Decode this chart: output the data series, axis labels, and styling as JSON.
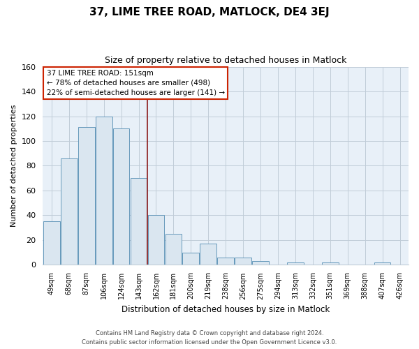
{
  "title": "37, LIME TREE ROAD, MATLOCK, DE4 3EJ",
  "subtitle": "Size of property relative to detached houses in Matlock",
  "xlabel": "Distribution of detached houses by size in Matlock",
  "ylabel": "Number of detached properties",
  "bar_labels": [
    "49sqm",
    "68sqm",
    "87sqm",
    "106sqm",
    "124sqm",
    "143sqm",
    "162sqm",
    "181sqm",
    "200sqm",
    "219sqm",
    "238sqm",
    "256sqm",
    "275sqm",
    "294sqm",
    "313sqm",
    "332sqm",
    "351sqm",
    "369sqm",
    "388sqm",
    "407sqm",
    "426sqm"
  ],
  "bar_values": [
    35,
    86,
    111,
    120,
    110,
    70,
    40,
    25,
    10,
    17,
    6,
    6,
    3,
    0,
    2,
    0,
    2,
    0,
    0,
    2,
    0
  ],
  "bar_color": "#dae6f0",
  "bar_edge_color": "#6699bb",
  "vline_x": 5.5,
  "vline_color": "#8b1a1a",
  "ylim": [
    0,
    160
  ],
  "yticks": [
    0,
    20,
    40,
    60,
    80,
    100,
    120,
    140,
    160
  ],
  "annotation_title": "37 LIME TREE ROAD: 151sqm",
  "annotation_line1": "← 78% of detached houses are smaller (498)",
  "annotation_line2": "22% of semi-detached houses are larger (141) →",
  "footer1": "Contains HM Land Registry data © Crown copyright and database right 2024.",
  "footer2": "Contains public sector information licensed under the Open Government Licence v3.0.",
  "plot_bg_color": "#e8f0f8",
  "background_color": "#ffffff",
  "grid_color": "#c0ccd8"
}
